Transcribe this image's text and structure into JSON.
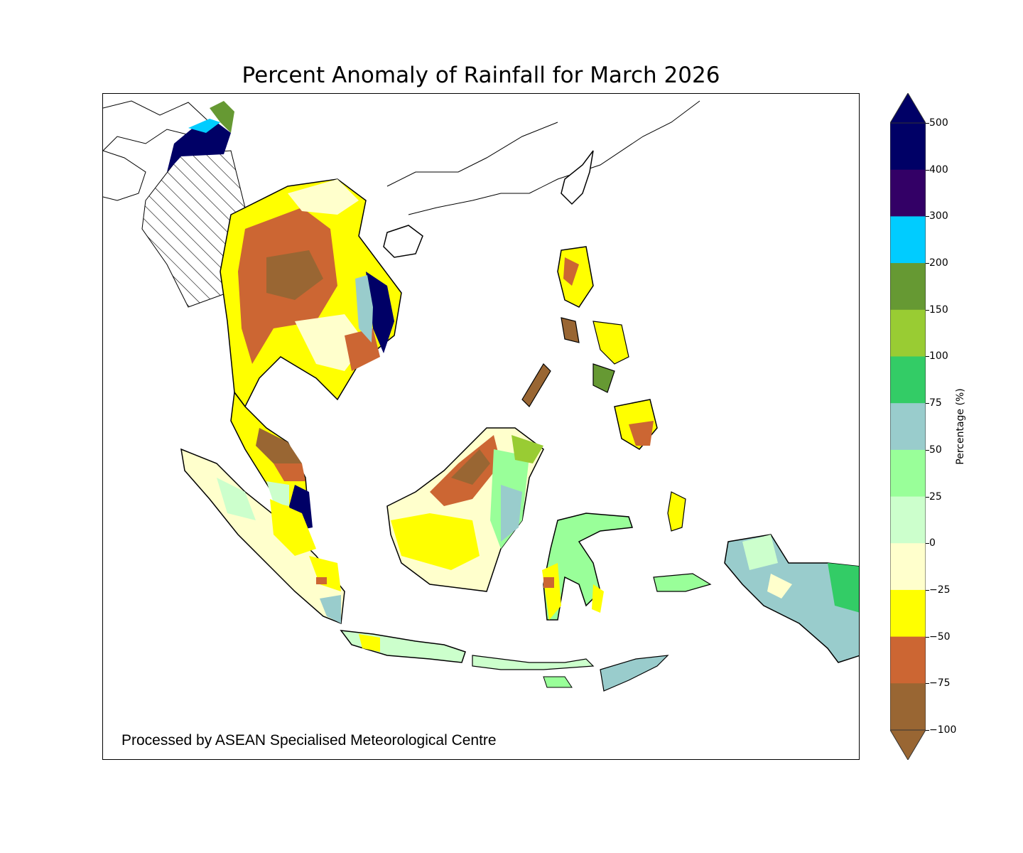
{
  "title": "Percent Anomaly of Rainfall for March 2026",
  "credit": "Processed by ASEAN Specialised Meteorological Centre",
  "colorbar": {
    "label": "Percentage (%)",
    "ticks": [
      "500",
      "400",
      "300",
      "200",
      "150",
      "100",
      "75",
      "50",
      "25",
      "0",
      "−25",
      "−50",
      "−75",
      "−100"
    ],
    "bins": [
      {
        "range": "400 to 500",
        "color": "#000066"
      },
      {
        "range": "300 to 400",
        "color": "#330066"
      },
      {
        "range": "200 to 300",
        "color": "#00CCFF"
      },
      {
        "range": "150 to 200",
        "color": "#669933"
      },
      {
        "range": "100 to 150",
        "color": "#99CC33"
      },
      {
        "range": "75 to 100",
        "color": "#33CC66"
      },
      {
        "range": "50 to 75",
        "color": "#99CCCC"
      },
      {
        "range": "25 to 50",
        "color": "#99FF99"
      },
      {
        "range": "0 to 25",
        "color": "#CCFFCC"
      },
      {
        "range": "-25 to 0",
        "color": "#FFFFCC"
      },
      {
        "range": "-50 to -25",
        "color": "#FFFF00"
      },
      {
        "range": "-75 to -50",
        "color": "#CC6633"
      },
      {
        "range": "-100 to -75",
        "color": "#996633"
      }
    ],
    "extend_max_color": "#000066",
    "extend_min_color": "#996633"
  },
  "chart_data": {
    "type": "heatmap",
    "title": "Percent Anomaly of Rainfall for March 2026",
    "colorbar_label": "Percentage (%)",
    "levels": [
      -100,
      -75,
      -50,
      -25,
      0,
      25,
      50,
      75,
      100,
      150,
      200,
      300,
      400,
      500
    ],
    "extend": "both",
    "hatched_region": "Myanmar (no data)",
    "regions": [
      {
        "name": "Northern Myanmar / Yunnan border",
        "anomaly_bin": "400 to 500"
      },
      {
        "name": "Myanmar",
        "anomaly_bin": "no data (hatched)"
      },
      {
        "name": "Northern Thailand",
        "anomaly_bin": "-75 to -50"
      },
      {
        "name": "Laos",
        "anomaly_bin": "-100 to -75"
      },
      {
        "name": "Northern Vietnam",
        "anomaly_bin": "-50 to -25"
      },
      {
        "name": "Central Vietnam coast",
        "anomaly_bin": "400 to 500"
      },
      {
        "name": "Cambodia",
        "anomaly_bin": "-25 to 0"
      },
      {
        "name": "Southern Vietnam",
        "anomaly_bin": "-75 to -50"
      },
      {
        "name": "Thai Peninsula",
        "anomaly_bin": "-75 to -50"
      },
      {
        "name": "Northern Peninsular Malaysia",
        "anomaly_bin": "-100 to -75"
      },
      {
        "name": "Southern Peninsular Malaysia (Johor) / Riau",
        "anomaly_bin": "400 to 500"
      },
      {
        "name": "Sumatra",
        "anomaly_bin": "-25 to 0"
      },
      {
        "name": "Southern Sumatra",
        "anomaly_bin": "50 to 75"
      },
      {
        "name": "Sarawak",
        "anomaly_bin": "-100 to -75"
      },
      {
        "name": "Sabah",
        "anomaly_bin": "100 to 150"
      },
      {
        "name": "West/Central Kalimantan",
        "anomaly_bin": "-50 to -25"
      },
      {
        "name": "East Kalimantan",
        "anomaly_bin": "50 to 75"
      },
      {
        "name": "Luzon",
        "anomaly_bin": "-75 to -50"
      },
      {
        "name": "Visayas",
        "anomaly_bin": "-50 to -25"
      },
      {
        "name": "Mindanao",
        "anomaly_bin": "-75 to -50"
      },
      {
        "name": "Java",
        "anomaly_bin": "0 to 25"
      },
      {
        "name": "Sulawesi",
        "anomaly_bin": "25 to 50"
      },
      {
        "name": "Maluku (Halmahera)",
        "anomaly_bin": "-50 to -25"
      },
      {
        "name": "Papua",
        "anomaly_bin": "50 to 75"
      },
      {
        "name": "Timor",
        "anomaly_bin": "50 to 75"
      }
    ]
  }
}
